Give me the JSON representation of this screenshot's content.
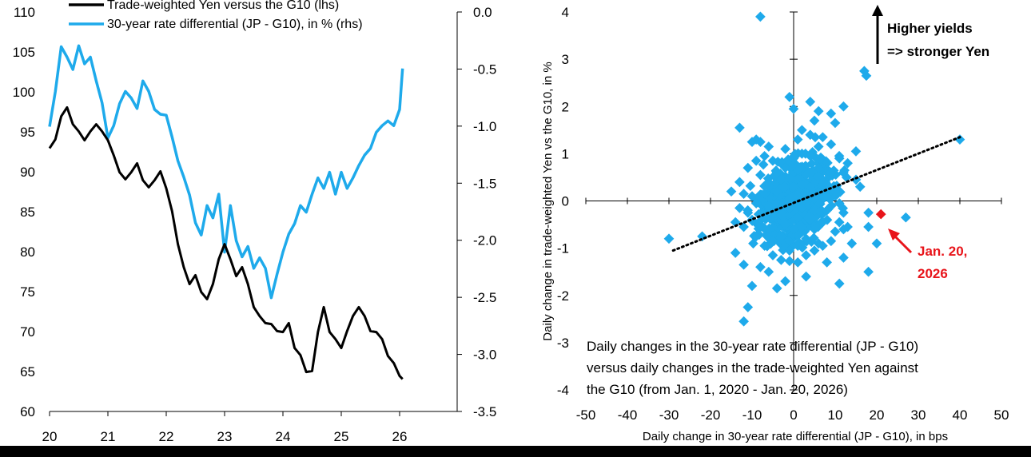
{
  "chart_data": [
    {
      "type": "line",
      "xlabel": "",
      "ylabel": "",
      "x_ticks": [
        "20",
        "21",
        "22",
        "23",
        "24",
        "25",
        "26"
      ],
      "xlim": [
        20,
        26.9
      ],
      "y_left_ticks": [
        "110",
        "105",
        "100",
        "95",
        "90",
        "85",
        "80",
        "75",
        "70",
        "65",
        "60"
      ],
      "y_left_lim": [
        60,
        110
      ],
      "y_right_ticks": [
        "0.0",
        "-0.5",
        "-1.0",
        "-1.5",
        "-2.0",
        "-2.5",
        "-3.0",
        "-3.5"
      ],
      "y_right_lim": [
        -3.5,
        0
      ],
      "legend_position": "top",
      "grid": false,
      "series": [
        {
          "name": "Trade-weighted Yen versus the G10 (lhs)",
          "axis": "left",
          "color": "#000000",
          "x": [
            20.0,
            20.1,
            20.2,
            20.3,
            20.4,
            20.5,
            20.6,
            20.7,
            20.8,
            20.9,
            21.0,
            21.1,
            21.2,
            21.3,
            21.4,
            21.5,
            21.6,
            21.7,
            21.8,
            21.9,
            22.0,
            22.1,
            22.2,
            22.3,
            22.4,
            22.5,
            22.6,
            22.7,
            22.8,
            22.9,
            23.0,
            23.1,
            23.2,
            23.3,
            23.4,
            23.5,
            23.6,
            23.7,
            23.8,
            23.9,
            24.0,
            24.1,
            24.2,
            24.3,
            24.4,
            24.5,
            24.6,
            24.7,
            24.8,
            24.9,
            25.0,
            25.1,
            25.2,
            25.3,
            25.4,
            25.5,
            25.6,
            25.7,
            25.8,
            25.9,
            26.0,
            26.05
          ],
          "values": [
            93,
            94,
            97,
            98,
            96,
            95,
            94,
            95,
            96,
            95,
            94,
            92,
            90,
            89,
            90,
            91,
            89,
            88,
            89,
            90,
            88,
            85,
            81,
            78,
            76,
            77,
            75,
            74,
            76,
            79,
            81,
            79,
            77,
            78,
            76,
            73,
            72,
            71,
            71,
            70,
            70,
            71,
            68,
            67,
            65,
            65,
            70,
            73,
            70,
            69,
            68,
            70,
            72,
            73,
            72,
            70,
            70,
            69,
            67,
            66,
            64.5,
            64
          ]
        },
        {
          "name": "30-year rate differential (JP - G10), in % (rhs)",
          "axis": "right",
          "color": "#1eaaeb",
          "x": [
            20.0,
            20.1,
            20.2,
            20.3,
            20.4,
            20.5,
            20.6,
            20.7,
            20.8,
            20.9,
            21.0,
            21.1,
            21.2,
            21.3,
            21.4,
            21.5,
            21.6,
            21.7,
            21.8,
            21.9,
            22.0,
            22.1,
            22.2,
            22.3,
            22.4,
            22.5,
            22.6,
            22.7,
            22.8,
            22.9,
            23.0,
            23.1,
            23.2,
            23.3,
            23.4,
            23.5,
            23.6,
            23.7,
            23.8,
            23.9,
            24.0,
            24.1,
            24.2,
            24.3,
            24.4,
            24.5,
            24.6,
            24.7,
            24.8,
            24.9,
            25.0,
            25.1,
            25.2,
            25.3,
            25.4,
            25.5,
            25.6,
            25.7,
            25.8,
            25.9,
            26.0,
            26.05
          ],
          "values": [
            -1.0,
            -0.7,
            -0.3,
            -0.4,
            -0.5,
            -0.3,
            -0.45,
            -0.4,
            -0.6,
            -0.8,
            -1.1,
            -1.0,
            -0.8,
            -0.7,
            -0.75,
            -0.85,
            -0.6,
            -0.7,
            -0.85,
            -0.9,
            -0.9,
            -1.1,
            -1.3,
            -1.45,
            -1.6,
            -1.85,
            -1.95,
            -1.7,
            -1.8,
            -1.6,
            -2.1,
            -1.7,
            -2.0,
            -2.15,
            -2.05,
            -2.25,
            -2.15,
            -2.25,
            -2.5,
            -2.3,
            -2.1,
            -1.95,
            -1.85,
            -1.7,
            -1.75,
            -1.6,
            -1.45,
            -1.55,
            -1.4,
            -1.6,
            -1.4,
            -1.55,
            -1.45,
            -1.35,
            -1.25,
            -1.2,
            -1.05,
            -1.0,
            -0.95,
            -1.0,
            -0.85,
            -0.5
          ]
        }
      ]
    },
    {
      "type": "scatter",
      "xlabel": "Daily change in 30-year rate differential (JP - G10), in bps",
      "ylabel": "Daily change in trade-weighted Yen vs the G10, in %",
      "x_ticks": [
        "-50",
        "-40",
        "-30",
        "-20",
        "-10",
        "0",
        "10",
        "20",
        "30",
        "40",
        "50"
      ],
      "xlim": [
        -50,
        50
      ],
      "y_ticks": [
        "4",
        "3",
        "2",
        "1",
        "0",
        "-1",
        "-2",
        "-3",
        "-4"
      ],
      "ylim": [
        -4,
        4
      ],
      "point_color": "#1eaaeb",
      "trendline": {
        "style": "dotted",
        "color": "#000000",
        "x": [
          -29,
          40
        ],
        "y": [
          -1.05,
          1.35
        ]
      },
      "highlight": {
        "x": 21,
        "y": -0.28,
        "color": "#e8151b"
      },
      "highlight_label": [
        "Jan. 20,",
        "2026"
      ],
      "highlight_label_color": "#e8151b",
      "arrow_annotation": [
        "Higher yields",
        "=> stronger Yen"
      ],
      "note": [
        "Daily changes in the 30-year rate differential (JP - G10)",
        "versus daily changes in the trade-weighted Yen against",
        "the G10 (from Jan. 1, 2020 - Jan. 20, 2026)"
      ],
      "points": [
        [
          -8,
          3.9
        ],
        [
          17,
          2.75
        ],
        [
          17.5,
          2.65
        ],
        [
          40,
          1.3
        ],
        [
          -30,
          -0.8
        ],
        [
          -22,
          -0.75
        ],
        [
          -13,
          1.55
        ],
        [
          -13,
          -0.15
        ],
        [
          -15,
          0.2
        ],
        [
          -14,
          -1.1
        ],
        [
          -12,
          -1.35
        ],
        [
          -11,
          -2.25
        ],
        [
          -12,
          -2.55
        ],
        [
          -10,
          -1.8
        ],
        [
          -8,
          -1.4
        ],
        [
          -6,
          -1.5
        ],
        [
          -4,
          -1.85
        ],
        [
          -2,
          -1.7
        ],
        [
          3,
          -1.6
        ],
        [
          8,
          -1.3
        ],
        [
          11,
          -1.75
        ],
        [
          12,
          -1.2
        ],
        [
          18,
          -1.5
        ],
        [
          20,
          -0.9
        ],
        [
          18,
          -0.55
        ],
        [
          12,
          -0.6
        ],
        [
          27,
          -0.35
        ],
        [
          18,
          -0.25
        ],
        [
          14,
          -0.9
        ],
        [
          13,
          -0.55
        ],
        [
          16,
          0.3
        ],
        [
          15,
          0.45
        ],
        [
          15,
          1.05
        ],
        [
          10,
          1.65
        ],
        [
          12,
          2.0
        ],
        [
          9,
          1.85
        ],
        [
          5,
          1.7
        ],
        [
          6,
          1.9
        ],
        [
          2,
          1.5
        ],
        [
          4,
          2.1
        ],
        [
          -1,
          2.2
        ],
        [
          0,
          1.95
        ],
        [
          -8,
          1.25
        ],
        [
          -9,
          1.3
        ],
        [
          -10,
          1.25
        ],
        [
          -6,
          1.15
        ],
        [
          -7,
          0.95
        ],
        [
          -5,
          0.85
        ],
        [
          -3,
          0.8
        ],
        [
          -11,
          0.7
        ],
        [
          -13,
          0.4
        ],
        [
          -12,
          0.15
        ],
        [
          -10,
          0.1
        ],
        [
          -9,
          -0.05
        ],
        [
          -11,
          -0.25
        ],
        [
          -10,
          -0.4
        ],
        [
          -12,
          -0.55
        ],
        [
          -9,
          -0.75
        ],
        [
          -7,
          -0.95
        ],
        [
          -5,
          -1.15
        ],
        [
          -3,
          -1.25
        ],
        [
          -1,
          -1.05
        ],
        [
          1,
          -1.3
        ],
        [
          3,
          -1.15
        ],
        [
          5,
          -1.05
        ],
        [
          7,
          -0.95
        ],
        [
          9,
          -0.85
        ],
        [
          10,
          -0.65
        ],
        [
          11,
          -0.45
        ],
        [
          12,
          -0.25
        ],
        [
          11,
          -0.05
        ],
        [
          10,
          0.2
        ],
        [
          12,
          0.6
        ],
        [
          11,
          0.9
        ],
        [
          9,
          1.2
        ],
        [
          7,
          1.35
        ],
        [
          4,
          1.4
        ],
        [
          1,
          1.3
        ],
        [
          -2,
          1.1
        ],
        [
          -4,
          0.6
        ],
        [
          -6,
          0.4
        ],
        [
          -7,
          0.15
        ],
        [
          -6,
          -0.1
        ],
        [
          -7,
          -0.35
        ],
        [
          -5,
          -0.55
        ],
        [
          -3,
          -0.75
        ],
        [
          -1,
          -0.85
        ],
        [
          1,
          -0.95
        ],
        [
          3,
          -0.8
        ],
        [
          5,
          -0.6
        ],
        [
          7,
          -0.45
        ],
        [
          8,
          -0.2
        ],
        [
          8,
          0.1
        ],
        [
          7,
          0.4
        ],
        [
          6,
          0.7
        ],
        [
          4,
          0.95
        ],
        [
          2,
          1.0
        ],
        [
          0,
          0.9
        ],
        [
          -2,
          0.7
        ],
        [
          -3,
          0.45
        ],
        [
          -4,
          0.2
        ],
        [
          -4,
          -0.05
        ],
        [
          -3,
          -0.3
        ],
        [
          -2,
          -0.5
        ],
        [
          0,
          -0.6
        ],
        [
          2,
          -0.55
        ],
        [
          4,
          -0.4
        ],
        [
          5,
          -0.2
        ],
        [
          5,
          0.05
        ],
        [
          4,
          0.3
        ],
        [
          3,
          0.55
        ],
        [
          1,
          0.65
        ],
        [
          -1,
          0.5
        ],
        [
          -2,
          0.3
        ],
        [
          -1,
          0.05
        ],
        [
          0,
          -0.2
        ],
        [
          1,
          -0.35
        ],
        [
          2,
          -0.15
        ],
        [
          3,
          0.1
        ],
        [
          2,
          0.35
        ],
        [
          0,
          0.3
        ],
        [
          1,
          0.1
        ],
        [
          -1,
          -0.15
        ],
        [
          6,
          -0.9
        ],
        [
          -8,
          0.55
        ],
        [
          9,
          0.6
        ],
        [
          -5,
          -0.85
        ],
        [
          6,
          1.15
        ],
        [
          -9,
          0.85
        ],
        [
          13,
          0.8
        ],
        [
          -14,
          -0.45
        ]
      ]
    }
  ]
}
